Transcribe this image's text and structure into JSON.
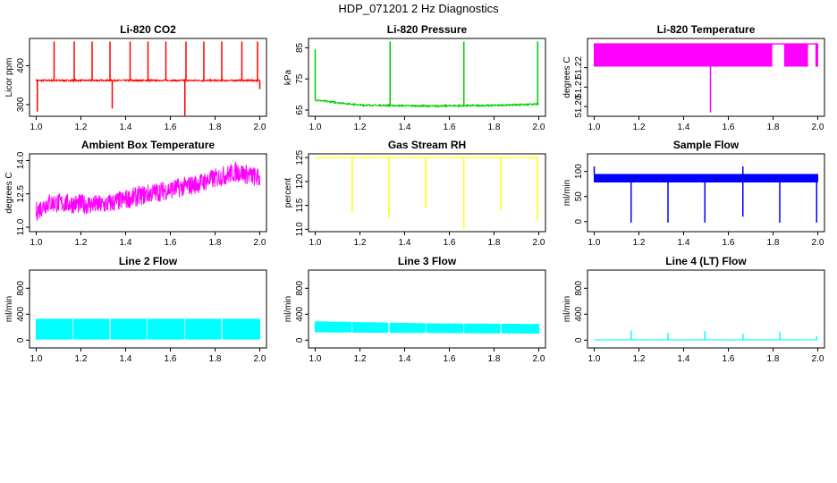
{
  "main_title": "HDP_071201  2 Hz Diagnostics",
  "chart_data": [
    {
      "type": "line",
      "title": "Li-820 CO2",
      "ylabel": "Licor ppm",
      "color": "#ff0000",
      "xlim": [
        0.97,
        2.03
      ],
      "ylim": [
        270,
        470
      ],
      "xticks": [
        1.0,
        1.2,
        1.4,
        1.6,
        1.8,
        2.0
      ],
      "xtick_labels": [
        "1.0",
        "1.2",
        "1.4",
        "1.6",
        "1.8",
        "2.0"
      ],
      "yticks": [
        300,
        400
      ],
      "ytick_labels": [
        "300",
        "400"
      ],
      "series": [
        {
          "name": "CO2",
          "base": 362,
          "noise": 2,
          "spikes": [
            [
              1.08,
              462
            ],
            [
              1.17,
              462
            ],
            [
              1.25,
              462
            ],
            [
              1.33,
              462
            ],
            [
              1.42,
              462
            ],
            [
              1.5,
              462
            ],
            [
              1.58,
              462
            ],
            [
              1.67,
              462
            ],
            [
              1.75,
              462
            ],
            [
              1.83,
              462
            ],
            [
              1.92,
              462
            ],
            [
              1.99,
              462
            ]
          ],
          "dips": [
            [
              1.005,
              282
            ],
            [
              1.34,
              290
            ],
            [
              1.665,
              272
            ],
            [
              2.0,
              340
            ]
          ]
        }
      ]
    },
    {
      "type": "line",
      "title": "Li-820 Pressure",
      "ylabel": "kPa",
      "color": "#00cc00",
      "xlim": [
        0.97,
        2.03
      ],
      "ylim": [
        63,
        88
      ],
      "xticks": [
        1.0,
        1.2,
        1.4,
        1.6,
        1.8,
        2.0
      ],
      "xtick_labels": [
        "1.0",
        "1.2",
        "1.4",
        "1.6",
        "1.8",
        "2.0"
      ],
      "yticks": [
        65,
        75,
        85
      ],
      "ytick_labels": [
        "65",
        "75",
        "85"
      ],
      "series": [
        {
          "name": "Pressure",
          "curve": [
            [
              1.0,
              68.2
            ],
            [
              1.2,
              66.6
            ],
            [
              1.5,
              66.3
            ],
            [
              1.8,
              66.5
            ],
            [
              2.0,
              66.9
            ]
          ],
          "noise": 0.25,
          "spikes": [
            [
              1.0,
              84.5
            ],
            [
              1.335,
              87
            ],
            [
              1.665,
              87
            ],
            [
              1.995,
              87
            ]
          ]
        }
      ]
    },
    {
      "type": "line",
      "title": "Li-820 Temperature",
      "ylabel": "degrees C",
      "color": "#ff00ff",
      "xlim": [
        0.97,
        2.03
      ],
      "ylim": [
        51.195,
        51.235
      ],
      "xticks": [
        1.0,
        1.2,
        1.4,
        1.6,
        1.8,
        2.0
      ],
      "xtick_labels": [
        "1.0",
        "1.2",
        "1.4",
        "1.6",
        "1.8",
        "2.0"
      ],
      "yticks": [
        51.2,
        51.21,
        51.22
      ],
      "ytick_labels": [
        "51.20",
        "51.21",
        "51.22"
      ],
      "series": [
        {
          "name": "Temperature",
          "low": 51.2205,
          "high": 51.2325,
          "gaps": [
            [
              1.795,
              1.85
            ],
            [
              1.955,
              1.99
            ]
          ],
          "dips": [
            [
              1.52,
              51.197
            ]
          ]
        }
      ]
    },
    {
      "type": "line",
      "title": "Ambient Box Temperature",
      "ylabel": "degrees C",
      "color": "#ff00ff",
      "xlim": [
        0.97,
        2.03
      ],
      "ylim": [
        10.8,
        14.3
      ],
      "xticks": [
        1.0,
        1.2,
        1.4,
        1.6,
        1.8,
        2.0
      ],
      "xtick_labels": [
        "1.0",
        "1.2",
        "1.4",
        "1.6",
        "1.8",
        "2.0"
      ],
      "yticks": [
        11.0,
        12.5,
        14.0
      ],
      "ytick_labels": [
        "11.0",
        "12.5",
        "14.0"
      ],
      "series": [
        {
          "name": "Ambient",
          "curve": [
            [
              1.0,
              11.7
            ],
            [
              1.05,
              12.1
            ],
            [
              1.3,
              12.0
            ],
            [
              1.5,
              12.5
            ],
            [
              1.7,
              12.9
            ],
            [
              1.9,
              13.5
            ],
            [
              2.0,
              13.2
            ]
          ],
          "noise": 0.45
        }
      ]
    },
    {
      "type": "line",
      "title": "Gas Stream RH",
      "ylabel": "percent",
      "color": "#ffff00",
      "xlim": [
        0.97,
        2.03
      ],
      "ylim": [
        109.5,
        125.8
      ],
      "xticks": [
        1.0,
        1.2,
        1.4,
        1.6,
        1.8,
        2.0
      ],
      "xtick_labels": [
        "1.0",
        "1.2",
        "1.4",
        "1.6",
        "1.8",
        "2.0"
      ],
      "yticks": [
        110,
        115,
        120,
        125
      ],
      "ytick_labels": [
        "110",
        "115",
        "120",
        "125"
      ],
      "series": [
        {
          "name": "RH",
          "base": 125.0,
          "noise": 0.05,
          "dips": [
            [
              1.165,
              113.5
            ],
            [
              1.33,
              112.5
            ],
            [
              1.495,
              114.5
            ],
            [
              1.665,
              110.0
            ],
            [
              1.83,
              114.0
            ],
            [
              1.995,
              112.0
            ]
          ]
        }
      ]
    },
    {
      "type": "line",
      "title": "Sample Flow",
      "ylabel": "ml/min",
      "color": "#0000ff",
      "xlim": [
        0.97,
        2.03
      ],
      "ylim": [
        -20,
        135
      ],
      "xticks": [
        1.0,
        1.2,
        1.4,
        1.6,
        1.8,
        2.0
      ],
      "xtick_labels": [
        "1.0",
        "1.2",
        "1.4",
        "1.6",
        "1.8",
        "2.0"
      ],
      "yticks": [
        0,
        50,
        100
      ],
      "ytick_labels": [
        "0",
        "50",
        "100"
      ],
      "series": [
        {
          "name": "Sample Flow",
          "low": 78,
          "high": 95,
          "noise": 0,
          "dips": [
            [
              1.165,
              -2
            ],
            [
              1.33,
              -2
            ],
            [
              1.495,
              -2
            ],
            [
              1.665,
              10
            ],
            [
              1.83,
              -2
            ],
            [
              1.995,
              -2
            ]
          ],
          "spikes": [
            [
              1.0,
              110
            ],
            [
              1.665,
              110
            ]
          ]
        }
      ]
    },
    {
      "type": "line",
      "title": "Line 2 Flow",
      "ylabel": "ml/min",
      "color": "#00ffff",
      "xlim": [
        0.97,
        2.03
      ],
      "ylim": [
        -120,
        1080
      ],
      "xticks": [
        1.0,
        1.2,
        1.4,
        1.6,
        1.8,
        2.0
      ],
      "xtick_labels": [
        "1.0",
        "1.2",
        "1.4",
        "1.6",
        "1.8",
        "2.0"
      ],
      "yticks": [
        0,
        400,
        800
      ],
      "ytick_labels": [
        "0",
        "400",
        "800"
      ],
      "series": [
        {
          "name": "Line 2",
          "low": 10,
          "high": 330,
          "gaps_thin": [
            1.165,
            1.33,
            1.495,
            1.665,
            1.83
          ]
        }
      ]
    },
    {
      "type": "line",
      "title": "Line 3 Flow",
      "ylabel": "ml/min",
      "color": "#00ffff",
      "xlim": [
        0.97,
        2.03
      ],
      "ylim": [
        -120,
        1080
      ],
      "xticks": [
        1.0,
        1.2,
        1.4,
        1.6,
        1.8,
        2.0
      ],
      "xtick_labels": [
        "1.0",
        "1.2",
        "1.4",
        "1.6",
        "1.8",
        "2.0"
      ],
      "yticks": [
        0,
        400,
        800
      ],
      "ytick_labels": [
        "0",
        "400",
        "800"
      ],
      "series": [
        {
          "name": "Line 3",
          "curve_low": [
            [
              1.0,
              120
            ],
            [
              2.0,
              100
            ]
          ],
          "curve_high": [
            [
              1.0,
              290
            ],
            [
              1.5,
              260
            ],
            [
              2.0,
              250
            ]
          ],
          "gaps_thin": [
            1.165,
            1.33,
            1.495,
            1.665,
            1.83
          ]
        }
      ]
    },
    {
      "type": "line",
      "title": "Line 4 (LT) Flow",
      "ylabel": "ml/min",
      "color": "#00ffff",
      "xlim": [
        0.97,
        2.03
      ],
      "ylim": [
        -120,
        1080
      ],
      "xticks": [
        1.0,
        1.2,
        1.4,
        1.6,
        1.8,
        2.0
      ],
      "xtick_labels": [
        "1.0",
        "1.2",
        "1.4",
        "1.6",
        "1.8",
        "2.0"
      ],
      "yticks": [
        0,
        400,
        800
      ],
      "ytick_labels": [
        "0",
        "400",
        "800"
      ],
      "series": [
        {
          "name": "Line 4",
          "base": 5,
          "noise": 2,
          "spikes": [
            [
              1.165,
              150
            ],
            [
              1.33,
              110
            ],
            [
              1.495,
              140
            ],
            [
              1.665,
              100
            ],
            [
              1.83,
              130
            ],
            [
              1.995,
              60
            ]
          ]
        }
      ]
    }
  ]
}
